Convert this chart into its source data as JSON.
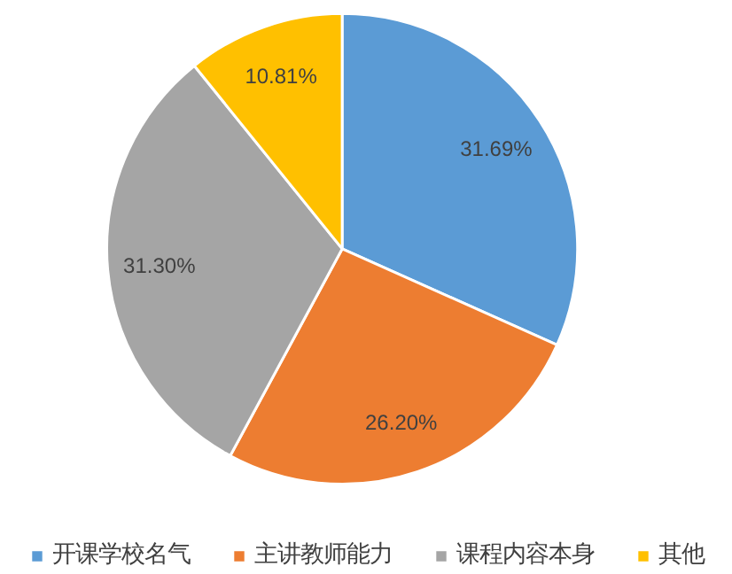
{
  "chart_data": {
    "type": "pie",
    "categories": [
      "开课学校名气",
      "主讲教师能力",
      "课程内容本身",
      "其他"
    ],
    "values": [
      31.69,
      26.2,
      31.3,
      10.81
    ],
    "colors": [
      "#5b9bd5",
      "#ed7d31",
      "#a5a5a5",
      "#ffc000"
    ],
    "value_labels": [
      "31.69%",
      "26.20%",
      "31.30%",
      "10.81%"
    ],
    "legend": "bottom"
  }
}
